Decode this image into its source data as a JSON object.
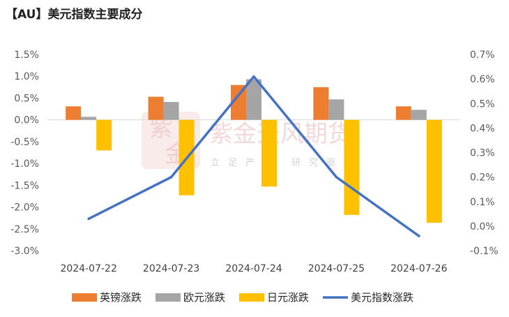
{
  "title": "【AU】美元指数主要成分",
  "watermark": {
    "name": "紫金天风期货",
    "slogan": "立足产业 研究驱动",
    "logo_chars": [
      "紫",
      "金"
    ]
  },
  "chart_data": {
    "type": "bar",
    "categories": [
      "2024-07-22",
      "2024-07-23",
      "2024-07-24",
      "2024-07-25",
      "2024-07-26"
    ],
    "series": [
      {
        "name": "英镑涨跌",
        "type": "bar",
        "axis": "left",
        "color": "#ED7D31",
        "values": [
          0.31,
          0.53,
          0.8,
          0.75,
          0.31
        ]
      },
      {
        "name": "欧元涨跌",
        "type": "bar",
        "axis": "left",
        "color": "#A5A5A5",
        "values": [
          0.07,
          0.41,
          0.93,
          0.47,
          0.23
        ]
      },
      {
        "name": "日元涨跌",
        "type": "bar",
        "axis": "left",
        "color": "#FFC000",
        "values": [
          -0.7,
          -1.73,
          -1.53,
          -2.18,
          -2.36
        ]
      },
      {
        "name": "美元指数涨跌",
        "type": "line",
        "axis": "right",
        "color": "#4472C4",
        "values": [
          0.03,
          0.2,
          0.61,
          0.2,
          -0.04
        ]
      }
    ],
    "y_left": {
      "min": -3.0,
      "max": 1.5,
      "step": 0.5,
      "ticks": [
        "1.5%",
        "1.0%",
        "0.5%",
        "0.0%",
        "-0.5%",
        "-1.0%",
        "-1.5%",
        "-2.0%",
        "-2.5%",
        "-3.0%"
      ]
    },
    "y_right": {
      "min": -0.1,
      "max": 0.7,
      "step": 0.1,
      "ticks": [
        "0.7%",
        "0.6%",
        "0.5%",
        "0.4%",
        "0.3%",
        "0.2%",
        "0.1%",
        "0.0%",
        "-0.1%"
      ]
    },
    "grid": false,
    "legend_position": "bottom"
  }
}
